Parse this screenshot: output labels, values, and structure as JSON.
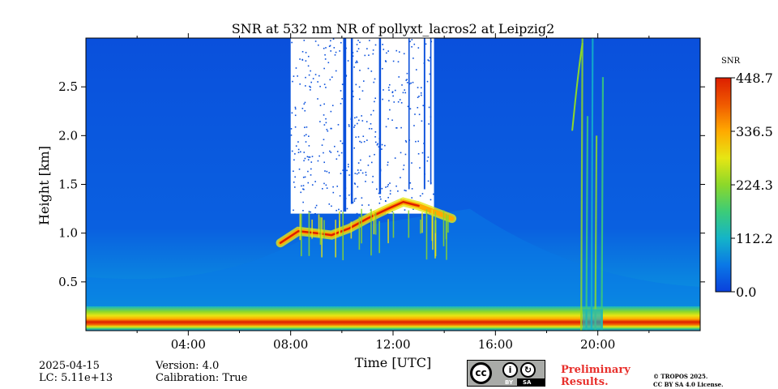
{
  "chart_data": {
    "type": "heatmap",
    "title": "SNR at 532 nm NR of pollyxt_lacros2 at Leipzig2",
    "xlabel": "Time [UTC]",
    "ylabel": "Height [km]",
    "xlim_hours": [
      0,
      24
    ],
    "ylim_km": [
      0,
      3.0
    ],
    "x_ticks": [
      {
        "value": 4,
        "label": "04:00"
      },
      {
        "value": 8,
        "label": "08:00"
      },
      {
        "value": 12,
        "label": "12:00"
      },
      {
        "value": 16,
        "label": "16:00"
      },
      {
        "value": 20,
        "label": "20:00"
      }
    ],
    "x_minor_ticks": [
      2,
      6,
      10,
      14,
      18,
      22
    ],
    "y_ticks": [
      {
        "value": 0.5,
        "label": "0.5"
      },
      {
        "value": 1.0,
        "label": "1.0"
      },
      {
        "value": 1.5,
        "label": "1.5"
      },
      {
        "value": 2.0,
        "label": "2.0"
      },
      {
        "value": 2.5,
        "label": "2.5"
      }
    ],
    "colorbar": {
      "label": "SNR",
      "min": 0.0,
      "max": 448.7,
      "ticks": [
        {
          "value": 0.0,
          "label": "0.0"
        },
        {
          "value": 112.2,
          "label": "112.2"
        },
        {
          "value": 224.3,
          "label": "224.3"
        },
        {
          "value": 336.5,
          "label": "336.5"
        },
        {
          "value": 448.7,
          "label": "448.7"
        }
      ],
      "colors": [
        "#0a40dc",
        "#0a78e6",
        "#14b4c8",
        "#3ccc78",
        "#8cd82a",
        "#e6e614",
        "#ffaa00",
        "#f05a00",
        "#dc1e00"
      ]
    },
    "features": {
      "background_snr": 0,
      "surface_layer": {
        "height_km": [
          0.0,
          0.25
        ],
        "peak_height_km": 0.12,
        "peak_snr": 448.7
      },
      "aerosol_layer": {
        "time_h": [
          7.6,
          14.3
        ],
        "top_km": [
          0.85,
          1.35
        ],
        "peak_snr": 440
      },
      "cloud_no_data": {
        "time_h": [
          8.0,
          13.6
        ],
        "height_km": [
          1.2,
          3.0
        ]
      },
      "rain_event": {
        "time_h": [
          18.9,
          20.3
        ],
        "height_km": [
          0.0,
          3.0
        ]
      }
    }
  },
  "info": {
    "date": "2025-04-15",
    "lc": "LC: 5.11e+13",
    "version": "Version: 4.0",
    "calibration": "Calibration: True"
  },
  "license": {
    "cc": "cc",
    "by": "BY",
    "sa": "SA",
    "preliminary_line1": "Preliminary",
    "preliminary_line2": "Results.",
    "copyright_line1": "© TROPOS 2025.",
    "copyright_line2": "CC BY SA 4.0 License."
  }
}
